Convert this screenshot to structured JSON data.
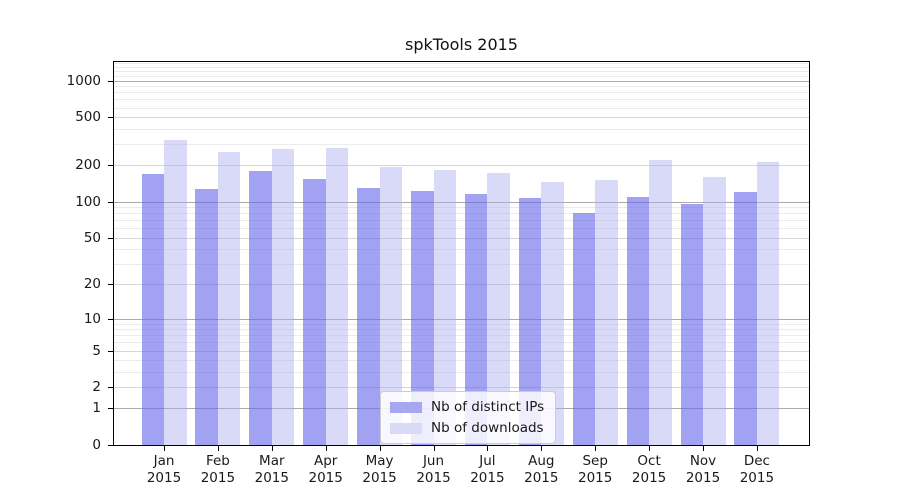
{
  "title": "spkTools 2015",
  "legend": {
    "items": [
      {
        "label": "Nb of distinct IPs"
      },
      {
        "label": "Nb of downloads"
      }
    ]
  },
  "x_axis": {
    "months": [
      "Jan",
      "Feb",
      "Mar",
      "Apr",
      "May",
      "Jun",
      "Jul",
      "Aug",
      "Sep",
      "Oct",
      "Nov",
      "Dec"
    ],
    "year": "2015"
  },
  "y_axis": {
    "tick_labels": [
      "1000",
      "500",
      "200",
      "100",
      "50",
      "20",
      "10",
      "5",
      "2",
      "1",
      "0"
    ]
  },
  "colors": {
    "bar_ips": "rgba(105,105,235,0.62)",
    "bar_downloads": "rgba(170,170,240,0.45)",
    "swatch_ips": "#a6a6f1",
    "swatch_downloads": "#d9d9f8",
    "grid_major": "#ababab",
    "grid_labeled": "#d6d6d6",
    "grid_minor": "#ebebeb"
  },
  "chart_data": {
    "type": "bar",
    "title": "spkTools 2015",
    "categories": [
      "Jan 2015",
      "Feb 2015",
      "Mar 2015",
      "Apr 2015",
      "May 2015",
      "Jun 2015",
      "Jul 2015",
      "Aug 2015",
      "Sep 2015",
      "Oct 2015",
      "Nov 2015",
      "Dec 2015"
    ],
    "series": [
      {
        "name": "Nb of distinct IPs",
        "values": [
          170,
          127,
          180,
          155,
          130,
          122,
          115,
          107,
          80,
          110,
          96,
          120
        ]
      },
      {
        "name": "Nb of downloads",
        "values": [
          325,
          258,
          275,
          280,
          195,
          184,
          174,
          146,
          151,
          222,
          160,
          214
        ]
      }
    ],
    "xlabel": "",
    "ylabel": "",
    "y_scale": "log10(value+1)",
    "y_ticks": [
      0,
      1,
      2,
      5,
      10,
      20,
      50,
      100,
      200,
      500,
      1000
    ],
    "y_minor_gridlines": [
      3,
      4,
      6,
      7,
      8,
      9,
      30,
      40,
      60,
      70,
      80,
      90,
      300,
      400,
      600,
      700,
      800,
      900,
      1100,
      1200,
      1300,
      1400
    ],
    "ylim": [
      0,
      1423
    ],
    "grid": true,
    "legend_position": "lower center"
  }
}
